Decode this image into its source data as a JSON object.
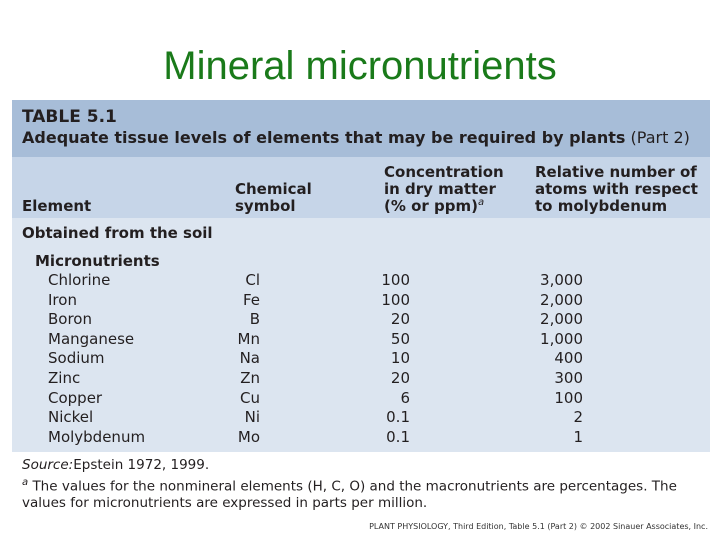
{
  "slide": {
    "title": "Mineral micronutrients"
  },
  "table": {
    "label": "TABLE 5.1",
    "caption": "Adequate tissue levels of elements that may be required by plants",
    "part": "(Part 2)",
    "columns": [
      [
        "Element"
      ],
      [
        "Chemical",
        "symbol"
      ],
      [
        "Concentration",
        "in dry matter",
        "(% or ppm)"
      ],
      [
        "Relative number of",
        "atoms with respect",
        "to molybdenum"
      ]
    ],
    "column_note_marker": "a",
    "section": "Obtained from the soil",
    "group": "Micronutrients",
    "rows": [
      [
        "Chlorine",
        "Cl",
        "100",
        "3,000"
      ],
      [
        "Iron",
        "Fe",
        "100",
        "2,000"
      ],
      [
        "Boron",
        "B",
        "20",
        "2,000"
      ],
      [
        "Manganese",
        "Mn",
        "50",
        "1,000"
      ],
      [
        "Sodium",
        "Na",
        "10",
        "400"
      ],
      [
        "Zinc",
        "Zn",
        "20",
        "300"
      ],
      [
        "Copper",
        "Cu",
        "6",
        "100"
      ],
      [
        "Nickel",
        "Ni",
        "0.1",
        "2"
      ],
      [
        "Molybdenum",
        "Mo",
        "0.1",
        "1"
      ]
    ]
  },
  "source": {
    "label": "Source:",
    "text": "Epstein 1972, 1999."
  },
  "footnote": {
    "marker": "a",
    "lines": [
      "The values for the nonmineral elements (H, C, O) and the macronutrients are percentages. The",
      "values for micronutrients are expressed in parts per million."
    ]
  },
  "credit": "PLANT PHYSIOLOGY, Third Edition, Table 5.1 (Part 2) © 2002 Sinauer Associates, Inc."
}
